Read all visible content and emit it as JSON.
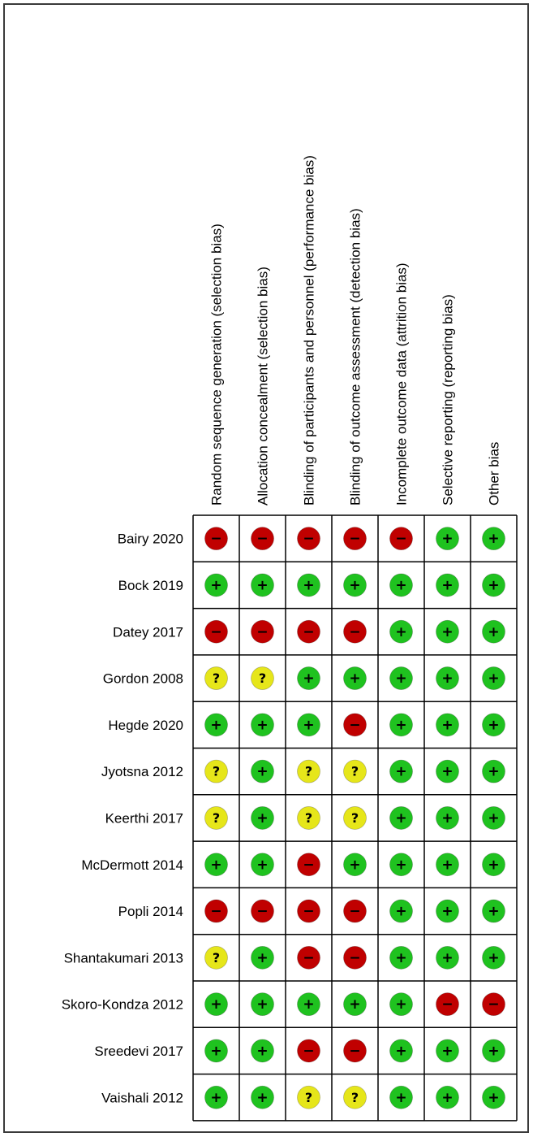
{
  "chart_data": {
    "type": "table",
    "title": "",
    "domains": [
      "Random sequence generation (selection bias)",
      "Allocation concealment (selection bias)",
      "Blinding of participants and personnel (performance bias)",
      "Blinding of outcome assessment (detection bias)",
      "Incomplete outcome data (attrition bias)",
      "Selective reporting (reporting bias)",
      "Other bias"
    ],
    "studies": [
      {
        "name": "Bairy 2020",
        "ratings": [
          "high",
          "high",
          "high",
          "high",
          "high",
          "low",
          "low"
        ]
      },
      {
        "name": "Bock 2019",
        "ratings": [
          "low",
          "low",
          "low",
          "low",
          "low",
          "low",
          "low"
        ]
      },
      {
        "name": "Datey 2017",
        "ratings": [
          "high",
          "high",
          "high",
          "high",
          "low",
          "low",
          "low"
        ]
      },
      {
        "name": "Gordon 2008",
        "ratings": [
          "unclear",
          "unclear",
          "low",
          "low",
          "low",
          "low",
          "low"
        ]
      },
      {
        "name": "Hegde 2020",
        "ratings": [
          "low",
          "low",
          "low",
          "high",
          "low",
          "low",
          "low"
        ]
      },
      {
        "name": "Jyotsna 2012",
        "ratings": [
          "unclear",
          "low",
          "unclear",
          "unclear",
          "low",
          "low",
          "low"
        ]
      },
      {
        "name": "Keerthi 2017",
        "ratings": [
          "unclear",
          "low",
          "unclear",
          "unclear",
          "low",
          "low",
          "low"
        ]
      },
      {
        "name": "McDermott 2014",
        "ratings": [
          "low",
          "low",
          "high",
          "low",
          "low",
          "low",
          "low"
        ]
      },
      {
        "name": "Popli 2014",
        "ratings": [
          "high",
          "high",
          "high",
          "high",
          "low",
          "low",
          "low"
        ]
      },
      {
        "name": "Shantakumari 2013",
        "ratings": [
          "unclear",
          "low",
          "high",
          "high",
          "low",
          "low",
          "low"
        ]
      },
      {
        "name": "Skoro-Kondza 2012",
        "ratings": [
          "low",
          "low",
          "low",
          "low",
          "low",
          "high",
          "high"
        ]
      },
      {
        "name": "Sreedevi 2017",
        "ratings": [
          "low",
          "low",
          "high",
          "high",
          "low",
          "low",
          "low"
        ]
      },
      {
        "name": "Vaishali 2012",
        "ratings": [
          "low",
          "low",
          "unclear",
          "unclear",
          "low",
          "low",
          "low"
        ]
      }
    ],
    "legend": {
      "low": {
        "symbol": "+",
        "color": "#1fc21f"
      },
      "high": {
        "symbol": "−",
        "color": "#c00000"
      },
      "unclear": {
        "symbol": "?",
        "color": "#e6e61a"
      }
    }
  }
}
